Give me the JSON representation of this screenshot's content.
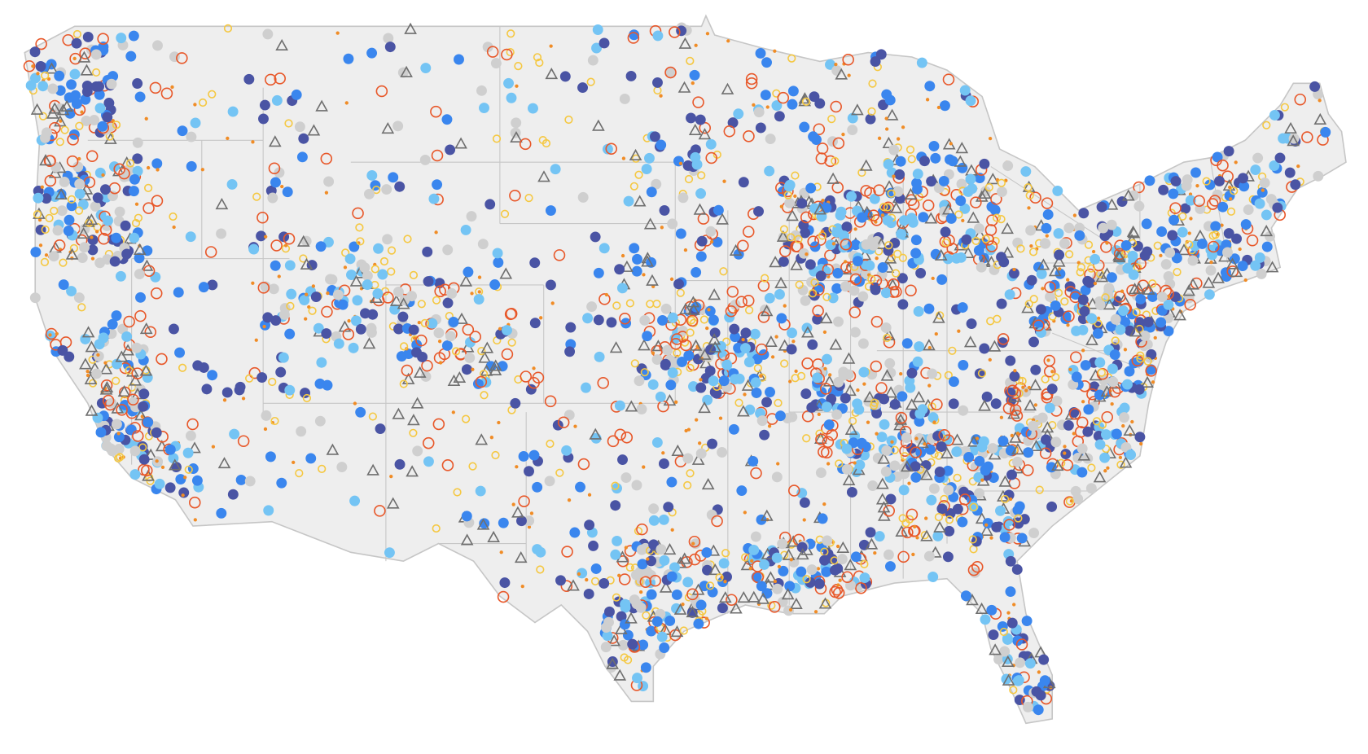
{
  "map": {
    "land": "#eeeeee",
    "border": "#c6c6c6",
    "markers": [
      {
        "shape": "dot",
        "fill": "#4a54a4",
        "size": 6
      },
      {
        "shape": "dot",
        "fill": "#3a86ee",
        "size": 6
      },
      {
        "shape": "dot",
        "fill": "#74c4f4",
        "size": 6
      },
      {
        "shape": "dot",
        "fill": "#cfcfcf",
        "size": 6
      },
      {
        "shape": "ring",
        "stroke": "#e8582a",
        "size": 6
      },
      {
        "shape": "ring",
        "stroke": "#f5c842",
        "size": 4
      },
      {
        "shape": "dot",
        "fill": "#f08c26",
        "size": 2
      },
      {
        "shape": "triangle",
        "stroke": "#6f6f6f",
        "size": 6
      }
    ]
  }
}
